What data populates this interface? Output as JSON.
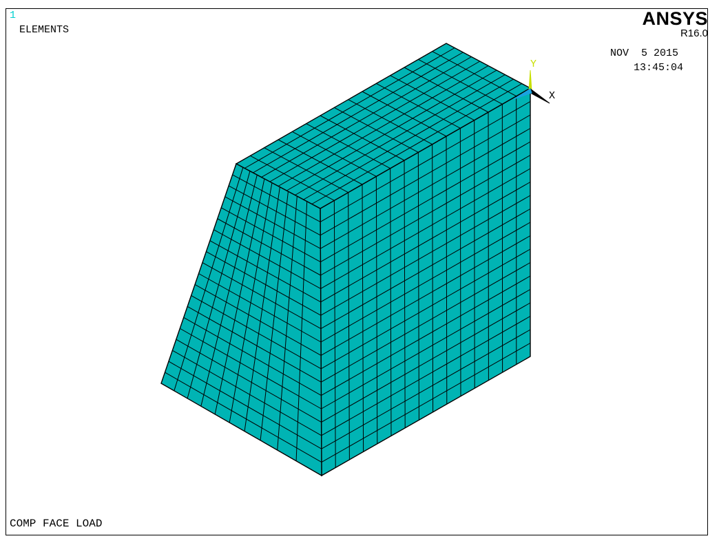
{
  "window": {
    "number": "1",
    "plot_type": "ELEMENTS"
  },
  "brand": {
    "name": "ANSYS",
    "release": "R16.0"
  },
  "timestamp": {
    "date": "NOV  5 2015",
    "time": "13:45:04"
  },
  "title": "COMP FACE LOAD",
  "triad": {
    "y_label": "Y",
    "x_label": "X"
  },
  "colors": {
    "element_fill": "#00b4b4",
    "element_edge": "#000000",
    "window_number": "#00d0d0",
    "triad_y": "#c8e000",
    "triad_z": "#1aa3e0",
    "triad_x": "#000000"
  },
  "mesh": {
    "front_columns": 15,
    "rows": 20,
    "depth_divisions": 10,
    "slope_divisions": 10
  }
}
